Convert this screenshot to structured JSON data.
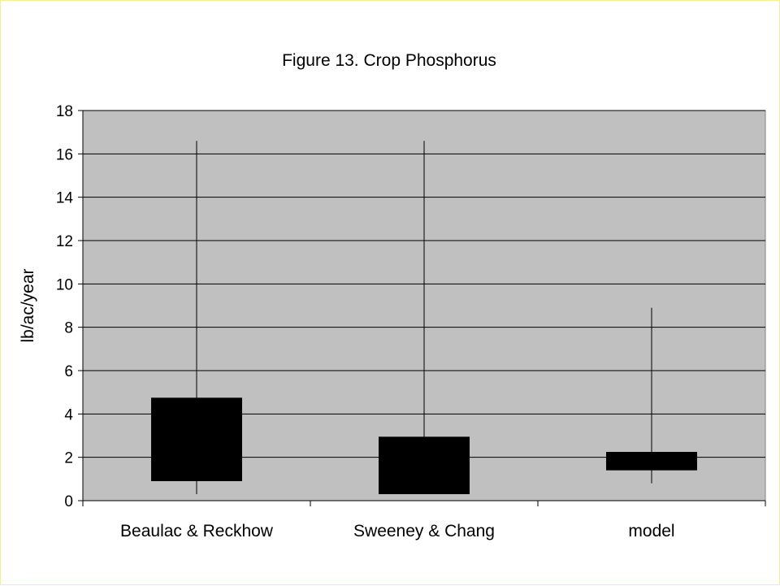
{
  "chart_data": {
    "type": "box",
    "title": "Figure 13.  Crop Phosphorus",
    "xlabel": "",
    "ylabel": "lb/ac/year",
    "ylim": [
      0,
      18
    ],
    "yticks": [
      0,
      2,
      4,
      6,
      8,
      10,
      12,
      14,
      16,
      18
    ],
    "grid": true,
    "legend": "none",
    "categories": [
      "Beaulac & Reckhow",
      "Sweeney & Chang",
      "model"
    ],
    "series": [
      {
        "low": [
          0.3,
          0.3,
          0.8
        ],
        "q1": [
          0.9,
          0.3,
          1.4
        ],
        "q3": [
          4.75,
          2.95,
          2.25
        ],
        "high": [
          16.6,
          16.6,
          8.9
        ]
      }
    ],
    "colors": {
      "plot_bg": "#c0c0c0",
      "box": "#000000",
      "grid": "#000000"
    }
  }
}
